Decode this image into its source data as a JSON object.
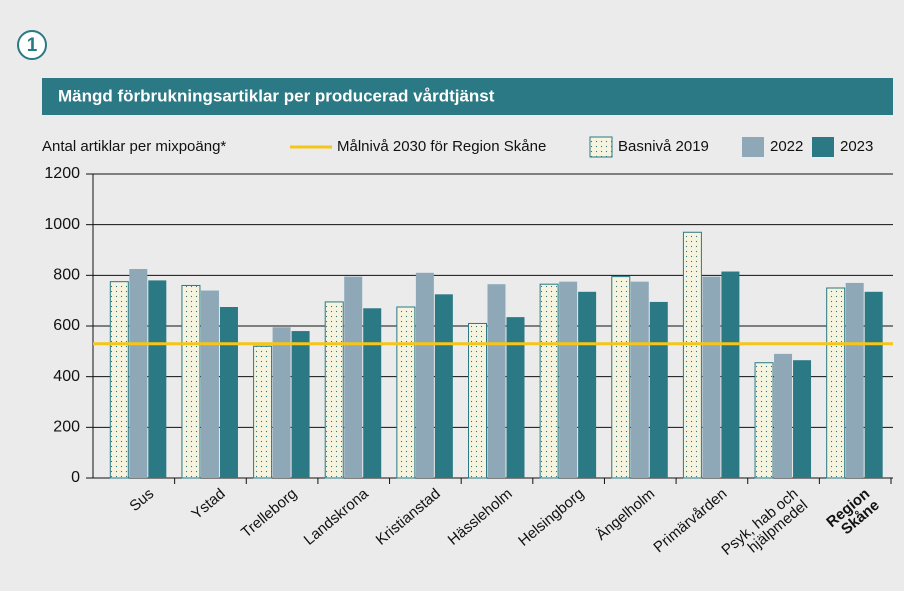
{
  "badge": "1",
  "chart_data": {
    "type": "bar",
    "title": "Mängd förbrukningsartiklar per producerad vårdtjänst",
    "ylabel": "Antal artiklar per mixpoäng*",
    "categories": [
      "Sus",
      "Ystad",
      "Trelleborg",
      "Landskrona",
      "Kristianstad",
      "Hässleholm",
      "Helsingborg",
      "Ängelholm",
      "Primärvården",
      "Psyk, hab och\nhjälpmedel",
      "Region\nSkåne"
    ],
    "emphasized_category": 10,
    "series": [
      {
        "name": "Basnivå 2019",
        "color": "#f6f3df",
        "pattern": "dots",
        "values": [
          775,
          760,
          520,
          695,
          675,
          610,
          765,
          795,
          970,
          455,
          750
        ]
      },
      {
        "name": "2022",
        "color": "#8ea8b8",
        "values": [
          825,
          740,
          595,
          795,
          810,
          765,
          775,
          775,
          795,
          490,
          770
        ]
      },
      {
        "name": "2023",
        "color": "#2a7984",
        "values": [
          780,
          675,
          580,
          670,
          725,
          635,
          735,
          695,
          815,
          465,
          735
        ]
      }
    ],
    "target": {
      "name": "Målnivå 2030 för Region Skåne",
      "value": 530,
      "color": "#f5c518"
    },
    "ylim": [
      0,
      1200
    ],
    "yticks": [
      0,
      200,
      400,
      600,
      800,
      1000,
      1200
    ],
    "grid": true
  }
}
